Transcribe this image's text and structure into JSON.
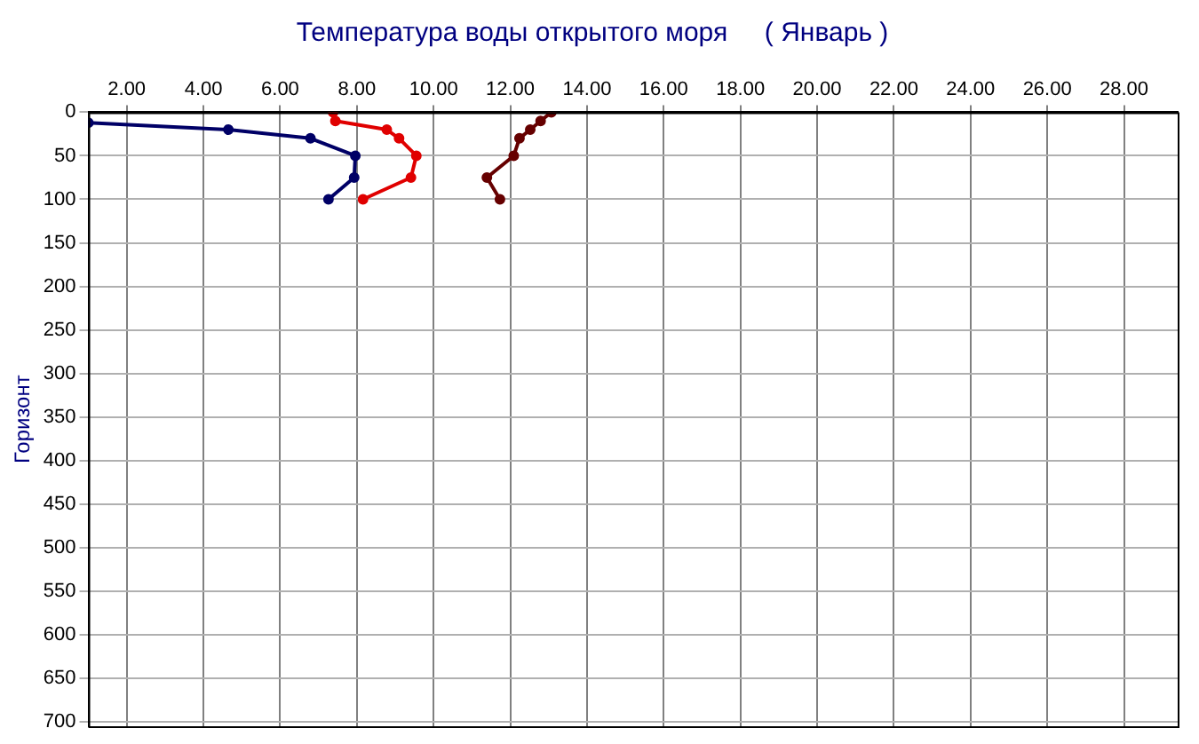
{
  "chart_data": {
    "type": "line",
    "title": "Температура воды открытого моря     ( Январь )",
    "ylabel": "Горизонт",
    "series": [
      {
        "color": "#000066",
        "x": [
          1,
          4.65,
          6.79,
          7.96,
          7.93,
          7.26
        ],
        "values": [
          12,
          20,
          30,
          50,
          75,
          100
        ]
      },
      {
        "color": "#e00000",
        "x": [
          7.38,
          7.44,
          8.78,
          9.1,
          9.55,
          9.41,
          8.16
        ],
        "values": [
          0,
          10,
          20,
          30,
          50,
          75,
          100
        ]
      },
      {
        "color": "#660000",
        "x": [
          13.07,
          12.79,
          12.52,
          12.24,
          12.09,
          11.39,
          11.73
        ],
        "values": [
          0,
          10,
          20,
          30,
          50,
          75,
          100
        ]
      }
    ],
    "xlim": [
      1,
      29.4
    ],
    "xticks": [
      {
        "value": 2,
        "label": "2.00"
      },
      {
        "value": 4,
        "label": "4.00"
      },
      {
        "value": 6,
        "label": "6.00"
      },
      {
        "value": 8,
        "label": "8.00"
      },
      {
        "value": 10,
        "label": "10.00"
      },
      {
        "value": 12,
        "label": "12.00"
      },
      {
        "value": 14,
        "label": "14.00"
      },
      {
        "value": 16,
        "label": "16.00"
      },
      {
        "value": 18,
        "label": "18.00"
      },
      {
        "value": 20,
        "label": "20.00"
      },
      {
        "value": 22,
        "label": "22.00"
      },
      {
        "value": 24,
        "label": "24.00"
      },
      {
        "value": 26,
        "label": "26.00"
      },
      {
        "value": 28,
        "label": "28.00"
      }
    ],
    "ylim": [
      705,
      0
    ],
    "yticks": [
      0,
      50,
      100,
      150,
      200,
      250,
      300,
      350,
      400,
      450,
      500,
      550,
      600,
      650,
      700
    ],
    "grid": true,
    "marker": "circle",
    "line_style": "solid",
    "legend": false
  }
}
